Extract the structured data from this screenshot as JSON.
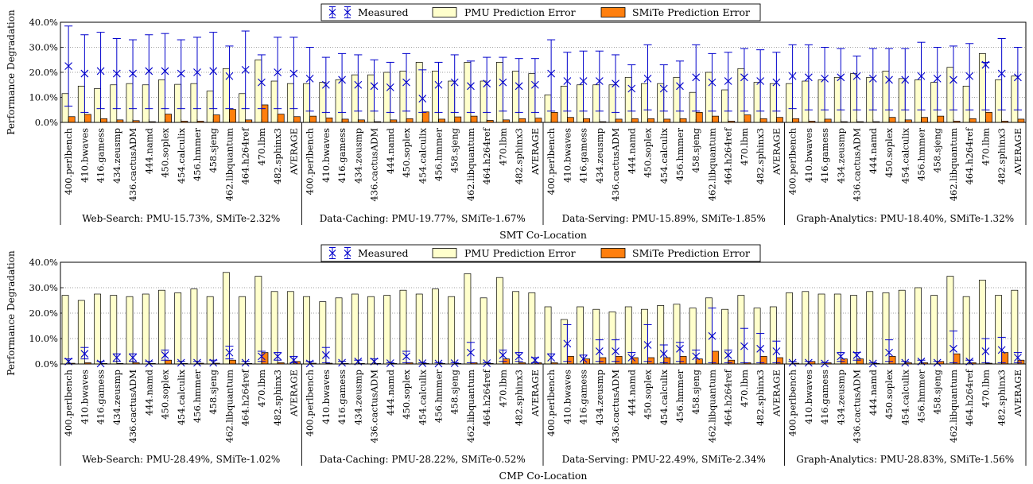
{
  "chart_data": [
    {
      "type": "bar",
      "xlabel": "SMT Co-Location",
      "ylabel": "Performance Degradation",
      "ylim": [
        0,
        40
      ],
      "yticks": [
        "0.0%",
        "10.0%",
        "20.0%",
        "30.0%",
        "40.0%"
      ],
      "grid": "horizontal dotted",
      "legend_position": "top-center",
      "legend": [
        "Measured",
        "PMU Prediction Error",
        "SMiTe Prediction Error"
      ],
      "colors": {
        "measured": "#0000cc",
        "pmu": "#ffffcc",
        "smite": "#ff7f0e"
      },
      "categories": [
        "400.perlbench",
        "410.bwaves",
        "416.gamess",
        "434.zeusmp",
        "436.cactusADM",
        "444.namd",
        "450.soplex",
        "454.calculix",
        "456.hmmer",
        "458.sjeng",
        "462.libquantum",
        "464.h264ref",
        "470.lbm",
        "482.sphinx3",
        "AVERAGE"
      ],
      "groups": [
        {
          "label": "Web-Search: PMU-15.73%, SMiTe-2.32%",
          "pmu": [
            11.5,
            14.5,
            13.5,
            15,
            15.5,
            15,
            17,
            15.2,
            15.5,
            12.5,
            21.5,
            11.5,
            25,
            16.5,
            15.5
          ],
          "smite": [
            2.3,
            3.2,
            1.5,
            1,
            0.7,
            0.3,
            3.3,
            0.5,
            0.5,
            3,
            5.2,
            1,
            7,
            3.3,
            2.3
          ],
          "measured": [
            22.5,
            19.5,
            20.5,
            19.5,
            19.5,
            20.5,
            20.5,
            19.5,
            20,
            20.5,
            18.5,
            21,
            16,
            20,
            19.5
          ],
          "err_low": [
            6.5,
            4,
            5.5,
            5.5,
            5.5,
            5.5,
            5.5,
            5.5,
            5.5,
            5.5,
            5.5,
            5.5,
            5.5,
            5.5,
            5.5
          ],
          "err_high": [
            38.5,
            35,
            36,
            33.5,
            33,
            35,
            35.5,
            33,
            34,
            36,
            30.5,
            36.5,
            27,
            34,
            34
          ]
        },
        {
          "label": "Data-Caching: PMU-19.77%, SMiTe-1.67%",
          "pmu": [
            15.5,
            16,
            17,
            19,
            19,
            20,
            20.5,
            24,
            20.5,
            16.5,
            24,
            16.5,
            24,
            20.5,
            19.5
          ],
          "smite": [
            2.5,
            1.8,
            1.3,
            1,
            0.3,
            1,
            1.5,
            4.2,
            1.3,
            2.2,
            2.5,
            0.8,
            1,
            1.5,
            1.7
          ],
          "measured": [
            17.5,
            15,
            17,
            15,
            14.5,
            14,
            16,
            9.5,
            15,
            16,
            14.5,
            15.5,
            16,
            14.5,
            15
          ],
          "err_low": [
            4.5,
            4,
            4,
            4.5,
            4.5,
            4,
            4.5,
            4,
            4,
            4,
            4,
            4,
            4.5,
            4,
            4
          ],
          "err_high": [
            30,
            26,
            27.5,
            27,
            25,
            24,
            27.5,
            21,
            24,
            27,
            24.5,
            26,
            26,
            25.5,
            25.5
          ]
        },
        {
          "label": "Data-Serving: PMU-15.89%, SMiTe-1.85%",
          "pmu": [
            11,
            14.5,
            15,
            15,
            15,
            18,
            15.5,
            15.5,
            18,
            12,
            20,
            13,
            21.5,
            16,
            15.5
          ],
          "smite": [
            4,
            2,
            1.5,
            0.3,
            1.3,
            1.5,
            1.5,
            1.3,
            1.5,
            4,
            2.5,
            0.5,
            3,
            1.5,
            2
          ],
          "measured": [
            19.5,
            16.5,
            16.5,
            16.5,
            15.5,
            13.5,
            17.5,
            13.5,
            14.5,
            18,
            16,
            16.5,
            18,
            16.5,
            16
          ],
          "err_low": [
            4.5,
            4.5,
            4.5,
            4.5,
            4,
            4.5,
            5,
            4.5,
            4.5,
            4.5,
            4.5,
            4.5,
            4.5,
            4.5,
            4.5
          ],
          "err_high": [
            33,
            28,
            28.5,
            28.5,
            27,
            23,
            31,
            23,
            24.5,
            31,
            27.5,
            28,
            29.5,
            29,
            28
          ]
        },
        {
          "label": "Graph-Analytics: PMU-18.40%, SMiTe-1.32%",
          "pmu": [
            15.5,
            16.5,
            17,
            18,
            19.5,
            18,
            20.5,
            17.5,
            17,
            16,
            22,
            14.5,
            27.5,
            17,
            18.5
          ],
          "smite": [
            1.5,
            0.5,
            1.3,
            0.3,
            0.3,
            0.3,
            2,
            1,
            2,
            2.5,
            0.5,
            1.5,
            4,
            0.5,
            1.3
          ],
          "measured": [
            18.5,
            18,
            17.5,
            18,
            18.5,
            17.5,
            17,
            17,
            18.5,
            17.5,
            17,
            18.5,
            23,
            19.5,
            18
          ],
          "err_low": [
            5.5,
            5,
            5,
            5,
            5,
            5,
            5,
            5,
            5,
            5,
            5,
            5,
            5,
            5,
            5
          ],
          "err_high": [
            31,
            31,
            30,
            29.5,
            26.5,
            29.5,
            29.5,
            29.5,
            32,
            30,
            30.5,
            31.5,
            24,
            33.5,
            30
          ]
        }
      ]
    },
    {
      "type": "bar",
      "xlabel": "CMP Co-Location",
      "ylabel": "Performance Degradation",
      "ylim": [
        0,
        40
      ],
      "yticks": [
        "0.0%",
        "10.0%",
        "20.0%",
        "30.0%",
        "40.0%"
      ],
      "grid": "horizontal dotted",
      "legend_position": "top-center",
      "legend": [
        "Measured",
        "PMU Prediction Error",
        "SMiTe Prediction Error"
      ],
      "colors": {
        "measured": "#0000cc",
        "pmu": "#ffffcc",
        "smite": "#ff7f0e"
      },
      "categories": [
        "400.perlbench",
        "410.bwaves",
        "416.gamess",
        "434.zeusmp",
        "436.cactusADM",
        "444.namd",
        "450.soplex",
        "454.calculix",
        "456.hmmer",
        "458.sjeng",
        "462.libquantum",
        "464.h264ref",
        "470.lbm",
        "482.sphinx3",
        "AVERAGE"
      ],
      "groups": [
        {
          "label": "Web-Search: PMU-28.49%, SMiTe-1.02%",
          "pmu": [
            27,
            25,
            27.5,
            27,
            26.5,
            27.5,
            29,
            28,
            29.5,
            26.5,
            36,
            26.5,
            34.5,
            28.5,
            28.5
          ],
          "smite": [
            0.3,
            0.5,
            0.2,
            0.2,
            0.5,
            0.2,
            1.5,
            0.2,
            0.3,
            0.3,
            1.5,
            0.2,
            4.5,
            0.5,
            1
          ],
          "measured": [
            1,
            4,
            0.2,
            2.5,
            2.5,
            0.3,
            3.5,
            0.5,
            0.5,
            0.5,
            4.5,
            0.5,
            3,
            3,
            1.5
          ],
          "err_low": [
            0,
            2,
            0,
            1,
            1,
            0,
            1.5,
            0,
            0,
            0,
            2,
            0,
            1,
            1.5,
            0.5
          ],
          "err_high": [
            2,
            6.5,
            1,
            4,
            4,
            1,
            5.5,
            1,
            1,
            1.5,
            7,
            1,
            5,
            4.5,
            3
          ]
        },
        {
          "label": "Data-Caching: PMU-28.22%, SMiTe-0.52%",
          "pmu": [
            26.5,
            24.5,
            26,
            27.5,
            26.5,
            27,
            29,
            27.5,
            29.5,
            26.5,
            35.5,
            26,
            34,
            28.5,
            28
          ],
          "smite": [
            0.3,
            0.3,
            0.2,
            0.2,
            0.2,
            0.2,
            0.5,
            0.2,
            0.2,
            0.2,
            0.5,
            0.2,
            2,
            0.5,
            0.5
          ],
          "measured": [
            0.2,
            3.5,
            0.5,
            1,
            1,
            0.3,
            3,
            0.3,
            0.2,
            0.3,
            4.5,
            0.3,
            3.5,
            3,
            1.5
          ],
          "err_low": [
            0,
            0.5,
            0,
            0,
            0,
            0,
            0.5,
            0,
            0,
            0,
            0.5,
            0,
            1,
            1,
            0.5
          ],
          "err_high": [
            1,
            6.5,
            1,
            1.5,
            2,
            0.5,
            5,
            0.5,
            0.5,
            0.5,
            8.5,
            0.5,
            5.5,
            4.5,
            2.5
          ]
        },
        {
          "label": "Data-Serving: PMU-22.49%, SMiTe-2.34%",
          "pmu": [
            22.5,
            17.5,
            22.5,
            21.5,
            20.5,
            22.5,
            21.5,
            23,
            23.5,
            22,
            26,
            21.5,
            27,
            22,
            22.5
          ],
          "smite": [
            0.5,
            3,
            2,
            2.5,
            3,
            2.5,
            2.5,
            2.5,
            3,
            2,
            5,
            1.5,
            0.5,
            3,
            2.5
          ],
          "measured": [
            2.5,
            8,
            2,
            5,
            5,
            2.5,
            7.5,
            4,
            6,
            3,
            11,
            3.5,
            7,
            6,
            5
          ],
          "err_low": [
            0,
            1,
            0,
            1,
            1,
            0,
            1,
            0.5,
            1,
            0,
            0.5,
            0.5,
            0.5,
            0.5,
            0.5
          ],
          "err_high": [
            4,
            15.5,
            3.5,
            9.5,
            9.5,
            4.5,
            15.5,
            7.5,
            8.5,
            5.5,
            22,
            5.5,
            14,
            12,
            9
          ]
        },
        {
          "label": "Graph-Analytics: PMU-28.83%, SMiTe-1.56%",
          "pmu": [
            28,
            28.5,
            27.5,
            27.5,
            27,
            28.5,
            28,
            29,
            30,
            27,
            34.5,
            26.5,
            33,
            27,
            29
          ],
          "smite": [
            0.3,
            1,
            0.5,
            2,
            2,
            0.2,
            3,
            0.5,
            0.5,
            1,
            4,
            0.5,
            0.3,
            4.5,
            1.5
          ],
          "measured": [
            0.5,
            0.5,
            0.2,
            3,
            3.5,
            0.2,
            4.5,
            0.5,
            1,
            0.5,
            6,
            1,
            5,
            5.5,
            2.5
          ],
          "err_low": [
            0,
            0,
            0,
            1,
            1.5,
            0,
            1,
            0,
            0,
            0,
            0.5,
            0,
            0.5,
            0.5,
            0.5
          ],
          "err_high": [
            1,
            1,
            0.5,
            4.5,
            4.5,
            0.5,
            9.5,
            1,
            1.5,
            1,
            13,
            1.5,
            10,
            10.5,
            4.5
          ]
        }
      ]
    }
  ]
}
